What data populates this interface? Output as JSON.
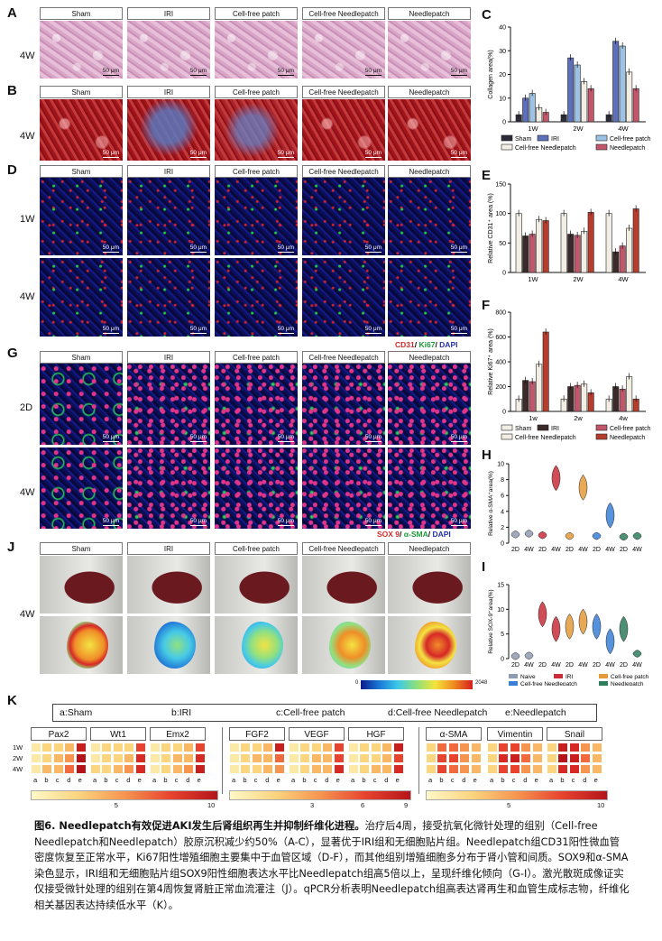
{
  "panel_letters": {
    "A": "A",
    "B": "B",
    "C": "C",
    "D": "D",
    "E": "E",
    "F": "F",
    "G": "G",
    "H": "H",
    "I": "I",
    "J": "J",
    "K": "K"
  },
  "groups": [
    "Sham",
    "IRI",
    "Cell-free patch",
    "Cell-free Needlepatch",
    "Needlepatch"
  ],
  "rows": {
    "w4": "4W",
    "w1": "1W",
    "d2": "2D"
  },
  "scale_bar": "50 μm",
  "stain_D": {
    "a": "CD31",
    "sep1": "/ ",
    "b": "Ki67",
    "sep2": "/ ",
    "c": "DAPI"
  },
  "stain_G": {
    "a": "SOX 9",
    "sep1": "/ ",
    "b": "α-SMA",
    "sep2": "/ ",
    "c": "DAPI"
  },
  "ldpi_scale": {
    "min": "0",
    "max": "2048"
  },
  "colors": {
    "sham": "#2b2b3a",
    "iri": "#5d6fb8",
    "cfp": "#9cc3e6",
    "cfn": "#f2eee4",
    "np": "#c2566b",
    "red": "#d22c2c"
  },
  "chart_data": [
    {
      "panel": "C",
      "type": "bar",
      "ylabel": "Collagen area(%)",
      "categories": [
        "1W",
        "2W",
        "4W"
      ],
      "ylim": [
        0,
        40
      ],
      "yticks": [
        "0",
        "10",
        "20",
        "30",
        "40"
      ],
      "series": [
        {
          "name": "Sham",
          "values": [
            3,
            3,
            3
          ]
        },
        {
          "name": "IRI",
          "values": [
            10,
            27,
            34
          ]
        },
        {
          "name": "Cell-free patch",
          "values": [
            12,
            24,
            32
          ]
        },
        {
          "name": "Cell-free Needlepatch",
          "values": [
            6,
            17,
            21
          ]
        },
        {
          "name": "Needlepatch",
          "values": [
            4,
            14,
            14
          ]
        }
      ],
      "legend": [
        "Sham",
        "IRI",
        "Cell-free patch",
        "Cell-free Needlepatch",
        "Needlepatch"
      ]
    },
    {
      "panel": "E",
      "type": "bar",
      "ylabel": "Relative CD31⁺ area (%)",
      "categories": [
        "1W",
        "2W",
        "4W"
      ],
      "ylim": [
        0,
        150
      ],
      "yticks": [
        "0",
        "50",
        "100",
        "150"
      ],
      "series": [
        {
          "name": "Sham",
          "values": [
            100,
            100,
            100
          ]
        },
        {
          "name": "IRI",
          "values": [
            62,
            65,
            35
          ]
        },
        {
          "name": "Cell-free patch",
          "values": [
            65,
            63,
            45
          ]
        },
        {
          "name": "Cell-free Needlepatch",
          "values": [
            90,
            70,
            75
          ]
        },
        {
          "name": "Needlepatch",
          "values": [
            88,
            102,
            108
          ]
        }
      ]
    },
    {
      "panel": "F",
      "type": "bar",
      "ylabel": "Relative Ki67⁺ area (%)",
      "categories": [
        "1w",
        "2w",
        "4w"
      ],
      "ylim": [
        0,
        800
      ],
      "yticks": [
        "0",
        "200",
        "400",
        "600",
        "800"
      ],
      "series": [
        {
          "name": "Sham",
          "values": [
            100,
            100,
            100
          ]
        },
        {
          "name": "IRI",
          "values": [
            250,
            200,
            200
          ]
        },
        {
          "name": "Cell-free patch",
          "values": [
            240,
            210,
            180
          ]
        },
        {
          "name": "Cell-free Needlepatch",
          "values": [
            380,
            220,
            280
          ]
        },
        {
          "name": "Needlepatch",
          "values": [
            640,
            150,
            100
          ]
        }
      ],
      "legend": [
        "Sham",
        "IRI",
        "Cell-free patch",
        "Cell-free Needlepatch",
        "Needlepatch"
      ]
    },
    {
      "panel": "H",
      "type": "scatter",
      "ylabel": "Relative α-SMA⁺area(%)",
      "ylim": [
        0,
        10
      ],
      "yticks": [
        "0",
        "2",
        "4",
        "6",
        "8",
        "10"
      ],
      "xticks": [
        "2D",
        "4W",
        "2D",
        "4W",
        "2D",
        "4W",
        "2D",
        "4W",
        "2D",
        "4W"
      ],
      "x": [
        1,
        2,
        3,
        4,
        5,
        6,
        7,
        8,
        9,
        10
      ],
      "values": [
        1.1,
        1.2,
        1.0,
        8.2,
        0.9,
        7.0,
        0.9,
        3.5,
        0.8,
        0.9
      ]
    },
    {
      "panel": "I",
      "type": "scatter",
      "ylabel": "Relative SOX-9⁺area(%)",
      "ylim": [
        0,
        15
      ],
      "yticks": [
        "0",
        "5",
        "10",
        "15"
      ],
      "xticks": [
        "2D",
        "4W",
        "2D",
        "4W",
        "2D",
        "4W",
        "2D",
        "4W",
        "2D",
        "4W"
      ],
      "x": [
        1,
        2,
        3,
        4,
        5,
        6,
        7,
        8,
        9,
        10
      ],
      "values": [
        0.5,
        0.6,
        9.0,
        6.0,
        6.5,
        7.5,
        6.5,
        3.5,
        6.0,
        1.0
      ],
      "legend": [
        "Naive",
        "IRI",
        "Cell-free patch",
        "Cell-free Needlepatch",
        "Needlepatch"
      ]
    },
    {
      "panel": "K",
      "type": "heatmap",
      "group_labels": [
        "a:Sham",
        "b:IRI",
        "c:Cell-free patch",
        "d:Cell-free Needlepatch",
        "e:Needlepatch"
      ],
      "genes": [
        "Pax2",
        "Wt1",
        "Emx2",
        "FGF2",
        "VEGF",
        "HGF",
        "α-SMA",
        "Vimentin",
        "Snail"
      ],
      "rows": [
        "1W",
        "2W",
        "4W"
      ],
      "cols": [
        "a",
        "b",
        "c",
        "d",
        "e"
      ],
      "colorbars": [
        {
          "min": "5",
          "max": "10"
        },
        {
          "min": "3",
          "max": "6",
          "max2": "9"
        },
        {
          "min": "5",
          "max": "10"
        }
      ],
      "values": {
        "Pax2": [
          [
            1,
            2,
            2,
            3,
            8
          ],
          [
            1,
            2,
            3,
            4,
            9
          ],
          [
            1,
            3,
            3,
            5,
            9
          ]
        ],
        "Wt1": [
          [
            1,
            2,
            2,
            2,
            6
          ],
          [
            1,
            2,
            2,
            3,
            7
          ],
          [
            2,
            2,
            3,
            4,
            7
          ]
        ],
        "Emx2": [
          [
            1,
            2,
            2,
            3,
            6
          ],
          [
            1,
            2,
            3,
            3,
            7
          ],
          [
            1,
            2,
            3,
            4,
            8
          ]
        ],
        "FGF2": [
          [
            1,
            2,
            2,
            3,
            8
          ],
          [
            1,
            2,
            3,
            3,
            5
          ],
          [
            1,
            2,
            2,
            3,
            4
          ]
        ],
        "VEGF": [
          [
            1,
            2,
            2,
            3,
            6
          ],
          [
            1,
            2,
            3,
            3,
            6
          ],
          [
            1,
            2,
            3,
            3,
            7
          ]
        ],
        "HGF": [
          [
            1,
            2,
            2,
            3,
            8
          ],
          [
            1,
            2,
            2,
            3,
            6
          ],
          [
            1,
            2,
            3,
            3,
            7
          ]
        ],
        "α-SMA": [
          [
            2,
            5,
            5,
            4,
            3
          ],
          [
            2,
            6,
            6,
            4,
            3
          ],
          [
            2,
            6,
            5,
            4,
            3
          ]
        ],
        "Vimentin": [
          [
            2,
            6,
            6,
            4,
            3
          ],
          [
            2,
            7,
            8,
            5,
            3
          ],
          [
            2,
            6,
            6,
            4,
            3
          ]
        ],
        "Snail": [
          [
            2,
            8,
            7,
            4,
            3
          ],
          [
            2,
            9,
            8,
            5,
            3
          ],
          [
            2,
            7,
            7,
            4,
            3
          ]
        ]
      }
    }
  ],
  "caption": {
    "title": "图6. Needlepatch有效促进AKI发生后肾组织再生并抑制纤维化进程。",
    "body": "治疗后4周，接受抗氧化微针处理的组别（Cell-free Needlepatch和Needlepatch）胶原沉积减少约50%（A-C），显著优于IRI组和无细胞贴片组。Needlepatch组CD31阳性微血管密度恢复至正常水平，Ki67阳性增殖细胞主要集中于血管区域（D-F），而其他组别增殖细胞多分布于肾小管和间质。SOX9和α-SMA染色显示，IRI组和无细胞贴片组SOX9阳性细胞表达水平比Needlepatch组高5倍以上，呈现纤维化倾向（G-I）。激光散斑成像证实仅接受微针处理的组别在第4周恢复肾脏正常血流灌注（J）。qPCR分析表明Needlepatch组高表达肾再生和血管生成标志物，纤维化相关基因表达持续低水平（K）。"
  }
}
